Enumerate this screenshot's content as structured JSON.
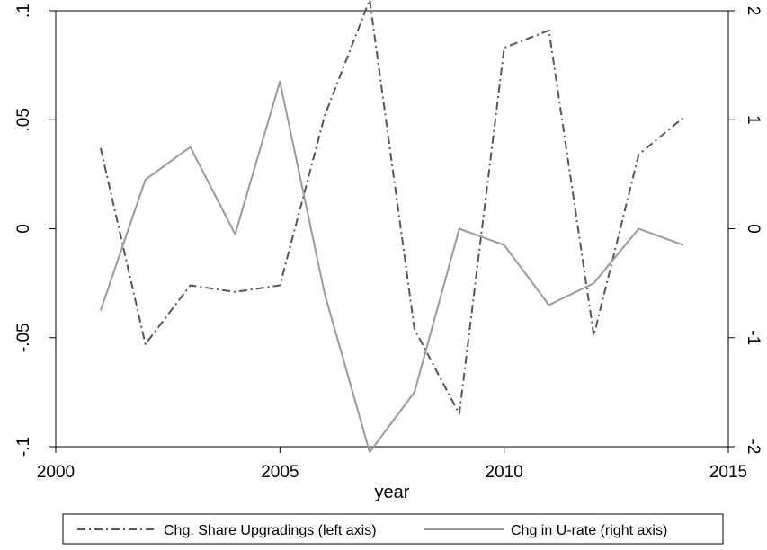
{
  "chart_data": {
    "type": "line",
    "xlabel": "year",
    "x": [
      2001,
      2002,
      2003,
      2004,
      2005,
      2006,
      2007,
      2008,
      2009,
      2010,
      2011,
      2012,
      2013,
      2014
    ],
    "xlim": [
      2000,
      2015
    ],
    "xticks": [
      2000,
      2005,
      2010,
      2015
    ],
    "xtick_labels": [
      "2000",
      "2005",
      "2010",
      "2015"
    ],
    "ylim_left": [
      -0.1,
      0.1
    ],
    "yticks_left": [
      -0.1,
      -0.05,
      0,
      0.05,
      0.1
    ],
    "ytick_labels_left": [
      "-.1",
      "-.05",
      "0",
      ".05",
      ".1"
    ],
    "ylim_right": [
      -2,
      2
    ],
    "yticks_right": [
      -2,
      -1,
      0,
      1,
      2
    ],
    "ytick_labels_right": [
      "-2",
      "-1",
      "0",
      "1",
      "2"
    ],
    "grid": false,
    "legend_position": "bottom",
    "series": [
      {
        "name": "Chg. Share Upgradings (left axis)",
        "axis": "left",
        "style": "dash-dot",
        "color": "#555555",
        "values": [
          0.037,
          -0.053,
          -0.026,
          -0.029,
          -0.026,
          0.052,
          0.105,
          -0.046,
          -0.085,
          0.083,
          0.091,
          -0.049,
          0.034,
          0.051
        ]
      },
      {
        "name": "Chg in U-rate (right axis)",
        "axis": "right",
        "style": "solid",
        "color": "#999999",
        "values": [
          -0.75,
          0.45,
          0.75,
          -0.05,
          1.35,
          -0.6,
          -2.05,
          -1.5,
          0.0,
          -0.15,
          -0.7,
          -0.5,
          0.0,
          -0.15
        ]
      }
    ]
  }
}
